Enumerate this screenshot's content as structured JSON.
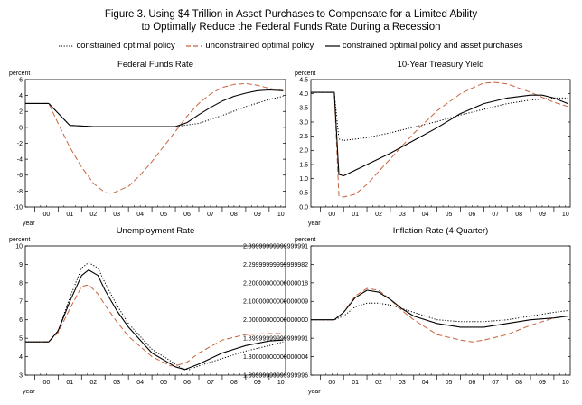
{
  "figure": {
    "title_line1": "Figure 3. Using $4 Trillion in Asset Purchases to Compensate for a Limited Ability",
    "title_line2": "to Optimally Reduce the Federal Funds Rate During a Recession"
  },
  "legend": [
    {
      "label": "constrained optimal policy",
      "style": "dotted",
      "color": "#000000"
    },
    {
      "label": "unconstrained optimal policy",
      "style": "dashed",
      "color": "#c8643c"
    },
    {
      "label": "constrained optimal policy and asset purchases",
      "style": "solid",
      "color": "#000000"
    }
  ],
  "chart_data": [
    {
      "type": "line",
      "title": "Federal Funds Rate",
      "ylabel": "percent",
      "xlabel": "year",
      "xlim": [
        1999.6,
        2010.7
      ],
      "ylim": [
        -10,
        6
      ],
      "yticks": [
        -10,
        -8,
        -6,
        -4,
        -2,
        0,
        2,
        4,
        6
      ],
      "xticks": [
        "00",
        "01",
        "02",
        "03",
        "04",
        "05",
        "06",
        "07",
        "08",
        "09",
        "10"
      ],
      "series": [
        {
          "name": "constrained optimal policy",
          "style": "dotted",
          "color": "#000000",
          "x": [
            1999.6,
            2000.6,
            2001.5,
            2002.5,
            2003,
            2004,
            2005,
            2006,
            2007,
            2008,
            2009,
            2010,
            2010.6
          ],
          "y": [
            3.0,
            3.0,
            0.25,
            0.1,
            0.1,
            0.1,
            0.1,
            0.1,
            0.5,
            1.5,
            2.6,
            3.5,
            3.9
          ]
        },
        {
          "name": "unconstrained optimal policy",
          "style": "dashed",
          "color": "#c8643c",
          "x": [
            1999.6,
            2000.6,
            2001,
            2001.5,
            2002,
            2002.5,
            2003,
            2003.3,
            2004,
            2004.5,
            2005,
            2005.5,
            2006,
            2006.5,
            2007,
            2007.5,
            2008,
            2008.5,
            2009,
            2009.5,
            2010,
            2010.6
          ],
          "y": [
            3.0,
            3.0,
            0.5,
            -2.5,
            -5.0,
            -7.0,
            -8.2,
            -8.3,
            -7.4,
            -6.0,
            -4.3,
            -2.4,
            -0.5,
            1.4,
            3.0,
            4.2,
            5.0,
            5.4,
            5.5,
            5.3,
            4.9,
            4.6
          ]
        },
        {
          "name": "constrained optimal policy and asset purchases",
          "style": "solid",
          "color": "#000000",
          "x": [
            1999.6,
            2000.6,
            2001.5,
            2002.5,
            2003,
            2004,
            2005,
            2006,
            2006.5,
            2007,
            2007.5,
            2008,
            2008.5,
            2009,
            2009.5,
            2010,
            2010.6
          ],
          "y": [
            3.0,
            3.0,
            0.25,
            0.1,
            0.1,
            0.1,
            0.1,
            0.1,
            0.6,
            1.6,
            2.5,
            3.3,
            3.9,
            4.3,
            4.6,
            4.7,
            4.6
          ]
        }
      ]
    },
    {
      "type": "line",
      "title": "10-Year Treasury Yield",
      "ylabel": "percent",
      "xlabel": "year",
      "xlim": [
        1999.6,
        2010.7
      ],
      "ylim": [
        0.0,
        4.5
      ],
      "yticks": [
        0.0,
        0.5,
        1.0,
        1.5,
        2.0,
        2.5,
        3.0,
        3.5,
        4.0,
        4.5
      ],
      "xticks": [
        "00",
        "01",
        "02",
        "03",
        "04",
        "05",
        "06",
        "07",
        "08",
        "09",
        "10"
      ],
      "series": [
        {
          "name": "constrained optimal policy",
          "style": "dotted",
          "color": "#000000",
          "x": [
            1999.6,
            2000.6,
            2000.8,
            2001,
            2002,
            2003,
            2004,
            2005,
            2006,
            2007,
            2008,
            2009,
            2010,
            2010.6
          ],
          "y": [
            4.05,
            4.05,
            2.4,
            2.35,
            2.45,
            2.62,
            2.82,
            3.02,
            3.25,
            3.45,
            3.65,
            3.78,
            3.85,
            3.85
          ]
        },
        {
          "name": "unconstrained optimal policy",
          "style": "dashed",
          "color": "#c8643c",
          "x": [
            1999.6,
            2000.6,
            2000.8,
            2001,
            2001.5,
            2002,
            2003,
            2004,
            2005,
            2006,
            2006.5,
            2007,
            2007.5,
            2008,
            2009,
            2010,
            2010.6
          ],
          "y": [
            4.05,
            4.05,
            0.4,
            0.35,
            0.45,
            0.8,
            1.7,
            2.6,
            3.4,
            4.0,
            4.2,
            4.38,
            4.4,
            4.35,
            4.05,
            3.7,
            3.55
          ]
        },
        {
          "name": "constrained optimal policy and asset purchases",
          "style": "solid",
          "color": "#000000",
          "x": [
            1999.6,
            2000.6,
            2000.8,
            2001,
            2002,
            2003,
            2004,
            2005,
            2006,
            2007,
            2008,
            2009,
            2009.5,
            2010,
            2010.6
          ],
          "y": [
            4.05,
            4.05,
            1.15,
            1.1,
            1.5,
            1.9,
            2.35,
            2.8,
            3.3,
            3.65,
            3.85,
            3.95,
            3.95,
            3.85,
            3.65
          ]
        }
      ]
    },
    {
      "type": "line",
      "title": "Unemployment Rate",
      "ylabel": "percent",
      "xlabel": "year",
      "xlim": [
        1999.6,
        2010.7
      ],
      "ylim": [
        3,
        10
      ],
      "yticks": [
        3,
        4,
        5,
        6,
        7,
        8,
        9,
        10
      ],
      "xticks": [
        "00",
        "01",
        "02",
        "03",
        "04",
        "05",
        "06",
        "07",
        "08",
        "09",
        "10"
      ],
      "series": [
        {
          "name": "constrained optimal policy",
          "style": "dotted",
          "color": "#000000",
          "x": [
            1999.6,
            2000.6,
            2001,
            2001.5,
            2002,
            2002.3,
            2002.7,
            2003,
            2003.5,
            2004,
            2005,
            2006,
            2006.3,
            2006.6,
            2007,
            2008,
            2009,
            2010,
            2010.6
          ],
          "y": [
            4.8,
            4.8,
            5.4,
            7.2,
            8.8,
            9.1,
            8.8,
            8.0,
            6.8,
            5.8,
            4.4,
            3.6,
            3.35,
            3.3,
            3.5,
            3.9,
            4.3,
            4.6,
            4.8
          ]
        },
        {
          "name": "unconstrained optimal policy",
          "style": "dashed",
          "color": "#c8643c",
          "x": [
            1999.6,
            2000.6,
            2001,
            2001.5,
            2002,
            2002.3,
            2002.7,
            2003,
            2003.5,
            2004,
            2005,
            2005.8,
            2006,
            2006.5,
            2007,
            2008,
            2009,
            2010,
            2010.6
          ],
          "y": [
            4.8,
            4.8,
            5.3,
            6.6,
            7.8,
            7.9,
            7.4,
            6.8,
            5.9,
            5.1,
            4.0,
            3.5,
            3.5,
            3.7,
            4.2,
            4.9,
            5.2,
            5.25,
            5.25
          ]
        },
        {
          "name": "constrained optimal policy and asset purchases",
          "style": "solid",
          "color": "#000000",
          "x": [
            1999.6,
            2000.6,
            2001,
            2001.5,
            2002,
            2002.3,
            2002.7,
            2003,
            2003.5,
            2004,
            2005,
            2006,
            2006.4,
            2007,
            2008,
            2009,
            2010,
            2010.6
          ],
          "y": [
            4.8,
            4.8,
            5.4,
            7.0,
            8.4,
            8.7,
            8.4,
            7.6,
            6.5,
            5.6,
            4.2,
            3.45,
            3.3,
            3.6,
            4.2,
            4.6,
            4.85,
            4.9
          ]
        }
      ]
    },
    {
      "type": "line",
      "title": "Inflation Rate (4-Quarter)",
      "ylabel": "percent",
      "xlabel": "year",
      "xlim": [
        1999.6,
        2010.7
      ],
      "ylim": [
        1.7,
        2.4
      ],
      "yticks": [
        1.7,
        1.8,
        1.9,
        2.0,
        2.1,
        2.2,
        2.3,
        2.4
      ],
      "xticks": [
        "00",
        "01",
        "02",
        "03",
        "04",
        "05",
        "06",
        "07",
        "08",
        "09",
        "10"
      ],
      "series": [
        {
          "name": "constrained optimal policy",
          "style": "dotted",
          "color": "#000000",
          "x": [
            1999.6,
            2000.6,
            2001,
            2001.5,
            2002,
            2002.5,
            2003,
            2004,
            2005,
            2006,
            2007,
            2008,
            2009,
            2010,
            2010.6
          ],
          "y": [
            2.0,
            2.0,
            2.02,
            2.07,
            2.09,
            2.09,
            2.08,
            2.04,
            2.0,
            1.99,
            1.99,
            2.0,
            2.02,
            2.04,
            2.05
          ]
        },
        {
          "name": "unconstrained optimal policy",
          "style": "dashed",
          "color": "#c8643c",
          "x": [
            1999.6,
            2000.6,
            2001,
            2001.5,
            2002,
            2002.5,
            2003,
            2003.5,
            2004,
            2005,
            2006,
            2006.5,
            2007,
            2008,
            2009,
            2010,
            2010.6
          ],
          "y": [
            2.0,
            2.0,
            2.04,
            2.13,
            2.17,
            2.16,
            2.11,
            2.05,
            2.0,
            1.92,
            1.89,
            1.88,
            1.89,
            1.92,
            1.97,
            2.01,
            2.02
          ]
        },
        {
          "name": "constrained optimal policy and asset purchases",
          "style": "solid",
          "color": "#000000",
          "x": [
            1999.6,
            2000.6,
            2001,
            2001.5,
            2002,
            2002.5,
            2003,
            2003.5,
            2004,
            2005,
            2006,
            2007,
            2008,
            2009,
            2010,
            2010.6
          ],
          "y": [
            2.0,
            2.0,
            2.04,
            2.12,
            2.16,
            2.15,
            2.11,
            2.06,
            2.02,
            1.98,
            1.96,
            1.96,
            1.98,
            2.0,
            2.01,
            2.02
          ]
        }
      ]
    }
  ]
}
